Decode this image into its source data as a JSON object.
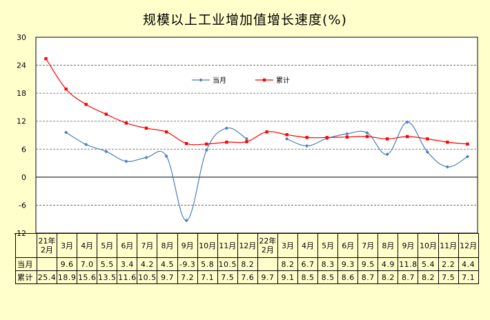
{
  "title": "规模以上工业增加值增长速度(%)",
  "chart_data": {
    "type": "line",
    "title": "规模以上工业增加值增长速度(%)",
    "ylim": [
      -12,
      30
    ],
    "yticks": [
      30,
      24,
      18,
      12,
      6,
      0,
      -6,
      -12
    ],
    "categories": [
      "21年2月",
      "3月",
      "4月",
      "5月",
      "6月",
      "7月",
      "8月",
      "9月",
      "10月",
      "11月",
      "12月",
      "22年2月",
      "3月",
      "4月",
      "5月",
      "6月",
      "7月",
      "8月",
      "9月",
      "10月",
      "11月",
      "12月"
    ],
    "series": [
      {
        "name": "当月",
        "color": "#4a7ebb",
        "values": [
          null,
          9.6,
          7.0,
          5.5,
          3.4,
          4.2,
          4.5,
          -9.3,
          5.8,
          10.5,
          8.2,
          null,
          8.2,
          6.7,
          8.3,
          9.3,
          9.5,
          4.9,
          11.8,
          5.4,
          2.2,
          4.4
        ]
      },
      {
        "name": "累计",
        "color": "#ff0000",
        "values": [
          25.4,
          18.9,
          15.6,
          13.5,
          11.6,
          10.5,
          9.7,
          7.2,
          7.1,
          7.5,
          7.6,
          9.7,
          9.1,
          8.5,
          8.5,
          8.6,
          8.7,
          8.2,
          8.7,
          8.2,
          7.5,
          7.1
        ]
      }
    ],
    "grid": "dashed horizontal",
    "legend": "top-center, inside plot"
  },
  "table": {
    "rows": [
      {
        "label": "当月",
        "cells": [
          "",
          "9.6",
          "7.0",
          "5.5",
          "3.4",
          "4.2",
          "4.5",
          "-9.3",
          "5.8",
          "10.5",
          "8.2",
          "",
          "8.2",
          "6.7",
          "8.3",
          "9.3",
          "9.5",
          "4.9",
          "11.8",
          "5.4",
          "2.2",
          "4.4"
        ]
      },
      {
        "label": "累计",
        "cells": [
          "25.4",
          "18.9",
          "15.6",
          "13.5",
          "11.6",
          "10.5",
          "9.7",
          "7.2",
          "7.1",
          "7.5",
          "7.6",
          "9.7",
          "9.1",
          "8.5",
          "8.5",
          "8.6",
          "8.7",
          "8.2",
          "8.7",
          "8.2",
          "7.5",
          "7.1"
        ]
      }
    ]
  }
}
